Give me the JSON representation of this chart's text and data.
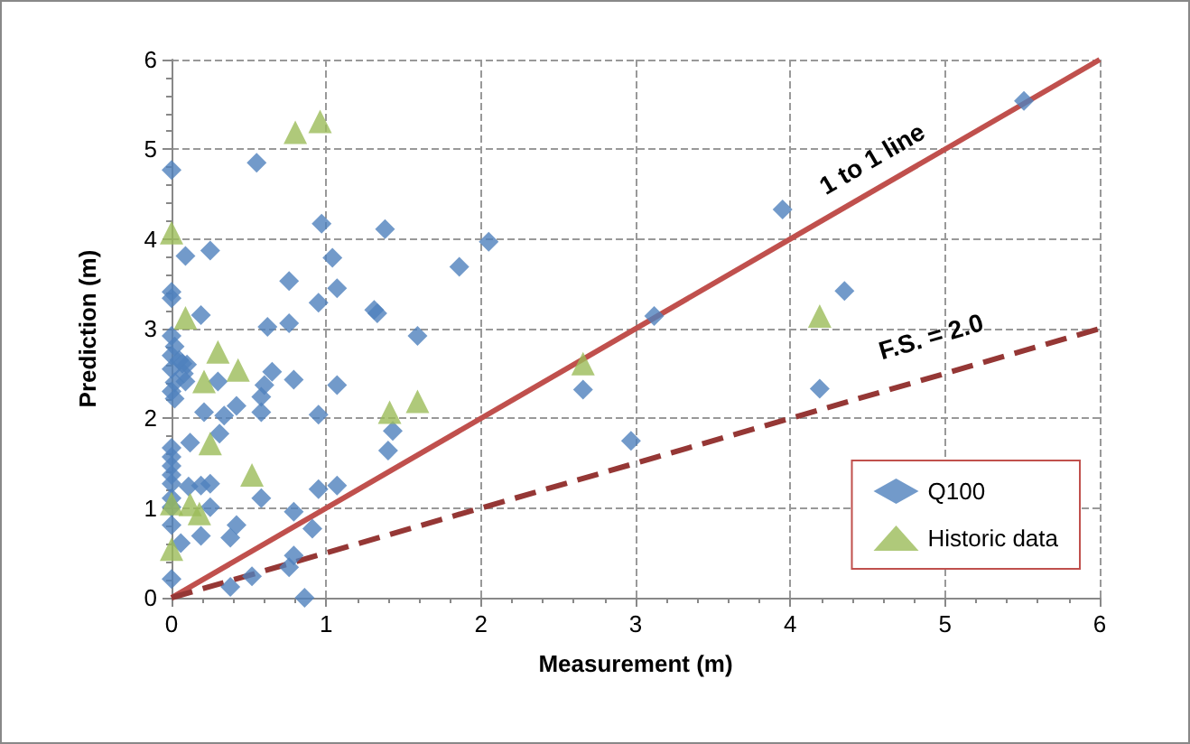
{
  "chart_data": {
    "type": "scatter",
    "xlabel": "Measurement (m)",
    "ylabel": "Prediction (m)",
    "xlim": [
      0,
      6
    ],
    "ylim": [
      0,
      6
    ],
    "xticks": [
      0,
      1,
      2,
      3,
      4,
      5,
      6
    ],
    "yticks": [
      0,
      1,
      2,
      3,
      4,
      5,
      6
    ],
    "grid": true,
    "legend": "bottom right",
    "line_style": "dashed",
    "series": [
      {
        "name": "Q100",
        "color": "#4f81bd",
        "marker": "diamond",
        "x": [
          0,
          0.55,
          0.97,
          1.38,
          2.05,
          0.09,
          0.25,
          1.04,
          1.86,
          0,
          0,
          0.76,
          0.95,
          1.07,
          1.31,
          1.33,
          0.19,
          0.62,
          0.76,
          1.59,
          0,
          0.02,
          0,
          0.05,
          0.1,
          0,
          0.08,
          0.02,
          0,
          0.02,
          0.07,
          0.09,
          0.3,
          0.65,
          0.6,
          0.58,
          0.58,
          0.79,
          1.07,
          0.21,
          0.34,
          0.42,
          0.31,
          0.95,
          1.43,
          1.4,
          0.12,
          0,
          0,
          0,
          0,
          0,
          0.11,
          0.19,
          0.25,
          0.95,
          1.07,
          0.58,
          0,
          0,
          0.25,
          0.79,
          0.91,
          0.42,
          0.38,
          0.19,
          0,
          0.06,
          0.79,
          0.76,
          0.52,
          0.38,
          0,
          0.86,
          5.51,
          3.95,
          3.12,
          4.35,
          2.66,
          4.19,
          2.97
        ],
        "values": [
          4.77,
          4.85,
          4.17,
          4.11,
          3.97,
          3.81,
          3.87,
          3.79,
          3.69,
          3.41,
          3.34,
          3.53,
          3.29,
          3.45,
          3.21,
          3.17,
          3.15,
          3.02,
          3.06,
          2.92,
          2.92,
          2.8,
          2.7,
          2.65,
          2.6,
          2.55,
          2.5,
          2.4,
          2.3,
          2.22,
          2.61,
          2.41,
          2.41,
          2.52,
          2.37,
          2.24,
          2.07,
          2.43,
          2.37,
          2.07,
          2.03,
          2.14,
          1.83,
          2.04,
          1.86,
          1.64,
          1.73,
          1.67,
          1.57,
          1.47,
          1.37,
          1.27,
          1.24,
          1.25,
          1.27,
          1.21,
          1.25,
          1.11,
          1.11,
          1.01,
          1.01,
          0.96,
          0.77,
          0.81,
          0.67,
          0.69,
          0.81,
          0.61,
          0.47,
          0.34,
          0.24,
          0.12,
          0.21,
          0,
          5.54,
          4.33,
          3.14,
          3.42,
          2.32,
          2.33,
          1.75
        ]
      },
      {
        "name": "Historic data",
        "color": "#9bbb59",
        "marker": "triangle",
        "x": [
          0.8,
          0.96,
          0,
          0.09,
          0.3,
          0.43,
          0.21,
          1.41,
          1.59,
          0.25,
          0.52,
          0,
          0.12,
          0.18,
          0,
          2.66,
          4.19
        ],
        "values": [
          5.19,
          5.31,
          4.07,
          3.12,
          2.74,
          2.54,
          2.41,
          2.07,
          2.19,
          1.72,
          1.37,
          1.05,
          1.04,
          0.94,
          0.54,
          2.61,
          3.14
        ]
      },
      {
        "type": "line",
        "color": "#c0504d",
        "marker": "none",
        "line_style": "solid",
        "x": [
          0,
          6
        ],
        "values": [
          0,
          6
        ]
      },
      {
        "type": "line",
        "color": "#953735",
        "marker": "none",
        "line_style": "dashed",
        "x": [
          0,
          6
        ],
        "values": [
          0,
          3
        ]
      }
    ],
    "annotations": [
      "1 to 1 line",
      "F.S. = 2.0"
    ]
  }
}
